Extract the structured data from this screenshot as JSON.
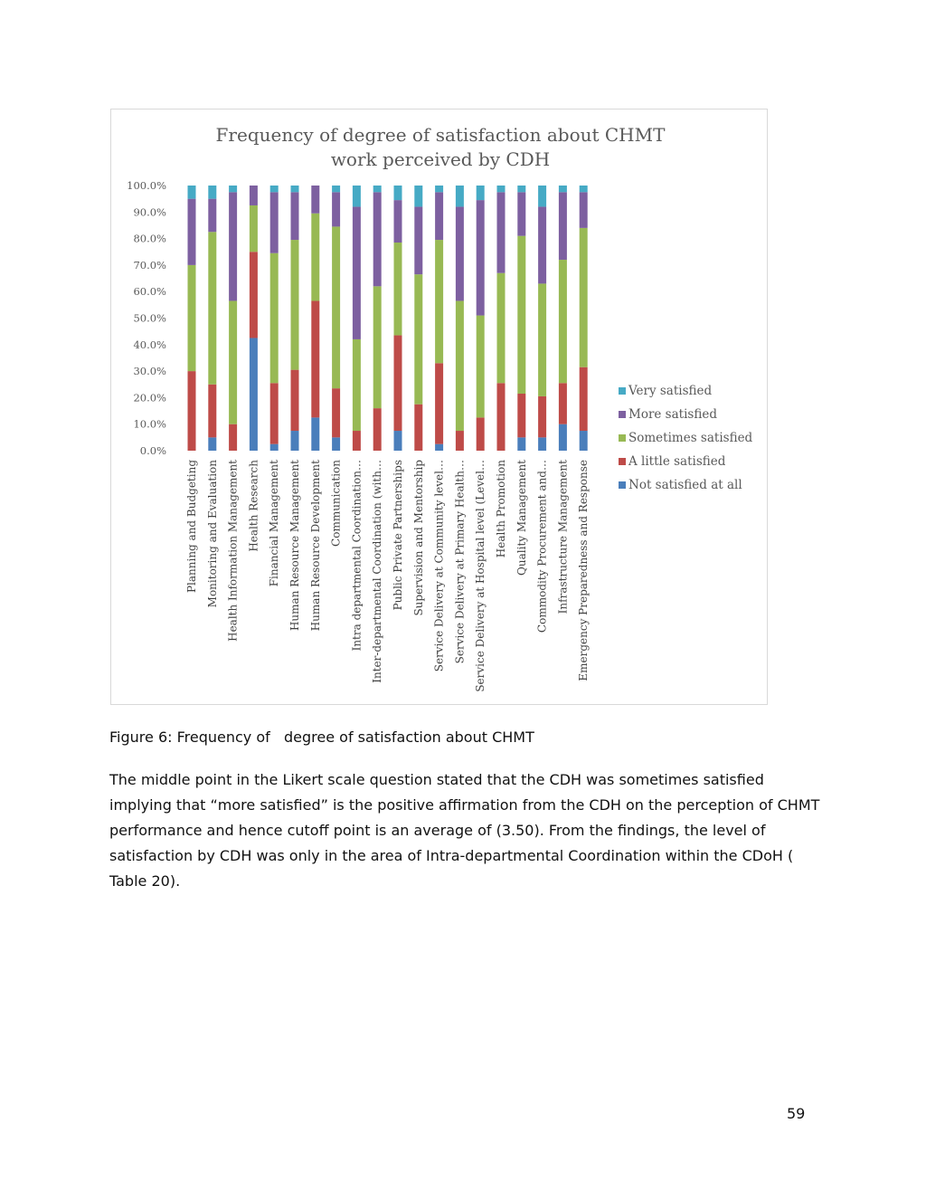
{
  "chart_data": {
    "type": "bar",
    "stacked": true,
    "title": [
      "Frequency of degree of satisfaction about CHMT",
      "work perceived by CDH"
    ],
    "xlabel": "",
    "ylabel": "",
    "ylim": [
      0,
      100
    ],
    "yticks": [
      "0.0%",
      "10.0%",
      "20.0%",
      "30.0%",
      "40.0%",
      "50.0%",
      "60.0%",
      "70.0%",
      "80.0%",
      "90.0%",
      "100.0%"
    ],
    "legend_position": "right",
    "grid": false,
    "categories": [
      "Planning and Budgeting",
      "Monitoring and Evaluation",
      "Health Information Management",
      "Health Research",
      "Financial Management",
      "Human Resource Management",
      "Human Resource Development",
      "Communication",
      "Intra departmental Coordination…",
      "Inter-departmental Coordination (with…",
      "Public Private Partnerships",
      "Supervision and Mentorship",
      "Service Delivery at Community level…",
      "Service Delivery at Primary Health…",
      "Service Delivery at Hospital level (Level…",
      "Health Promotion",
      "Quality Management",
      "Commodity Procurement and…",
      "Infrastructure Management",
      "Emergency Preparedness and Response"
    ],
    "series": [
      {
        "name": "Not satisfied at all",
        "color": "#4a7ebb",
        "values": [
          0,
          5,
          0,
          42.5,
          2.5,
          7.5,
          12.5,
          5,
          0,
          0,
          7.5,
          0,
          2.5,
          0,
          0,
          0,
          5,
          5,
          10,
          7.5
        ]
      },
      {
        "name": "A little satisfied",
        "color": "#be4b48",
        "values": [
          30,
          20,
          10,
          32.5,
          23,
          23,
          44,
          18.5,
          7.5,
          16,
          36,
          17.5,
          30.5,
          7.5,
          12.5,
          25.5,
          16.5,
          15.5,
          15.5,
          24
        ]
      },
      {
        "name": "Sometimes satisfied",
        "color": "#98b954",
        "values": [
          40,
          57.5,
          46.5,
          17.5,
          49,
          49,
          33,
          61,
          34.5,
          46,
          35,
          49,
          46.5,
          49,
          38.5,
          41.5,
          59.5,
          42.5,
          46.5,
          52.5
        ]
      },
      {
        "name": "More satisfied",
        "color": "#7d60a0",
        "values": [
          25,
          12.5,
          41,
          7.5,
          23,
          18,
          10.5,
          13,
          50,
          35.5,
          16,
          25.5,
          18,
          35.5,
          43.5,
          30.5,
          16.5,
          29,
          25.5,
          13.5
        ]
      },
      {
        "name": "Very satisfied",
        "color": "#46aac5",
        "values": [
          5,
          5,
          2.5,
          0,
          2.5,
          2.5,
          0,
          2.5,
          8,
          2.5,
          5.5,
          8,
          2.5,
          8,
          5.5,
          2.5,
          2.5,
          8,
          2.5,
          2.5
        ]
      }
    ]
  },
  "caption": "Figure 6: Frequency of   degree of satisfaction about CHMT",
  "paragraph": "The middle point in the Likert scale question stated that the CDH was sometimes satisfied implying that “more satisfied” is the positive affirmation from the CDH on the perception of CHMT performance and hence cutoff point is an average of (3.50). From the findings, the level of satisfaction by CDH was only in the area of Intra-departmental Coordination within the CDoH ( Table 20).",
  "page_number": "59"
}
